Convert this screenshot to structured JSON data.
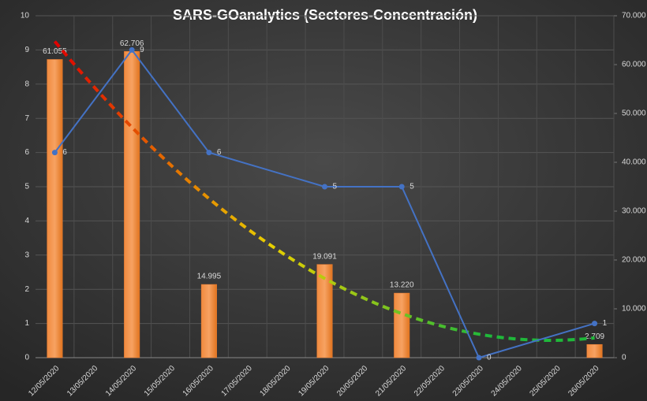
{
  "chart_data": {
    "type": "bar-line",
    "title": "SARS-GOanalytics (Sectores-Concentración)",
    "categories": [
      "12/05/2020",
      "13/05/2020",
      "14/05/2020",
      "15/05/2020",
      "16/05/2020",
      "17/05/2020",
      "18/05/2020",
      "19/05/2020",
      "20/05/2020",
      "21/05/2020",
      "22/05/2020",
      "23/05/2020",
      "24/05/2020",
      "25/05/2020",
      "26/05/2020"
    ],
    "series": [
      {
        "type": "bar",
        "axis": "y2",
        "color": "#ed7d31",
        "x": [
          "12/05/2020",
          "14/05/2020",
          "16/05/2020",
          "19/05/2020",
          "21/05/2020",
          "26/05/2020"
        ],
        "values": [
          61055,
          62706,
          14995,
          19091,
          13220,
          2709
        ],
        "value_labels": [
          "61.055",
          "62.706",
          "14.995",
          "19.091",
          "13.220",
          "2.709"
        ],
        "trendline": "polynomial",
        "trendline_colors": [
          "#e00000",
          "#e8d000",
          "#1fb83a"
        ]
      },
      {
        "type": "line",
        "axis": "y",
        "color": "#4472c4",
        "x": [
          "12/05/2020",
          "14/05/2020",
          "16/05/2020",
          "19/05/2020",
          "21/05/2020",
          "23/05/2020",
          "26/05/2020"
        ],
        "values": [
          6,
          9,
          6,
          5,
          5,
          0,
          1
        ]
      }
    ],
    "ylim": [
      0,
      10
    ],
    "yticks": [
      0,
      1,
      2,
      3,
      4,
      5,
      6,
      7,
      8,
      9,
      10
    ],
    "y2lim": [
      0,
      70000
    ],
    "y2ticks": [
      {
        "value": 0,
        "label": "0"
      },
      {
        "value": 10000,
        "label": "10.000"
      },
      {
        "value": 20000,
        "label": "20.000"
      },
      {
        "value": 30000,
        "label": "30.000"
      },
      {
        "value": 40000,
        "label": "40.000"
      },
      {
        "value": 50000,
        "label": "50.000"
      },
      {
        "value": 60000,
        "label": "60.000"
      },
      {
        "value": 70000,
        "label": "70.000"
      }
    ],
    "grid": true
  }
}
